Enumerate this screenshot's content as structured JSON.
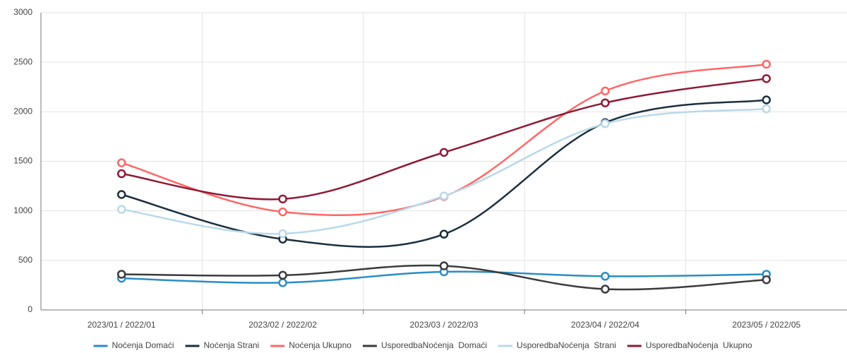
{
  "chart_data": {
    "type": "line",
    "categories": [
      "2023/01 / 2022/01",
      "2023/02 / 2022/02",
      "2023/03 / 2022/03",
      "2023/04 / 2022/04",
      "2023/05 / 2022/05"
    ],
    "series": [
      {
        "name": "Noćenja Domaći",
        "color": "#2a8dc5",
        "values": [
          320,
          275,
          385,
          340,
          360
        ]
      },
      {
        "name": "Noćenja Strani",
        "color": "#1c2f3e",
        "values": [
          1165,
          715,
          765,
          1890,
          2120
        ]
      },
      {
        "name": "Noćenja Ukupno",
        "color": "#ff6666",
        "values": [
          1485,
          990,
          1145,
          2210,
          2480
        ]
      },
      {
        "name": "UsporedbaNoćenja  Domaći",
        "color": "#3b3b3b",
        "values": [
          360,
          350,
          445,
          210,
          305
        ]
      },
      {
        "name": "UsporedbaNoćenja  Strani",
        "color": "#b9d9ea",
        "values": [
          1015,
          770,
          1150,
          1880,
          2030
        ]
      },
      {
        "name": "UsporedbaNoćenja  Ukupno",
        "color": "#8e1a36",
        "values": [
          1375,
          1120,
          1590,
          2090,
          2335
        ]
      }
    ],
    "ylim": [
      0,
      3000
    ],
    "yticks": [
      0,
      500,
      1000,
      1500,
      2000,
      2500,
      3000
    ],
    "grid": true,
    "legend": "bottom"
  }
}
